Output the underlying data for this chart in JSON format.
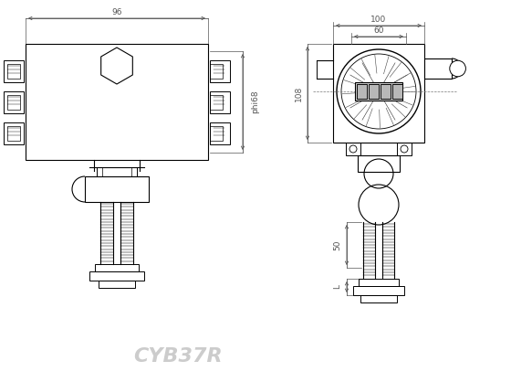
{
  "bg_color": "#ffffff",
  "line_color": "#000000",
  "dim_color": "#555555",
  "watermark_color": "#cccccc",
  "watermark_text": "CYB37R",
  "dim_96": "96",
  "dim_phi68": "phi68",
  "dim_100": "100",
  "dim_60": "60",
  "dim_108": "108",
  "dim_50": "50",
  "dim_L": "L"
}
